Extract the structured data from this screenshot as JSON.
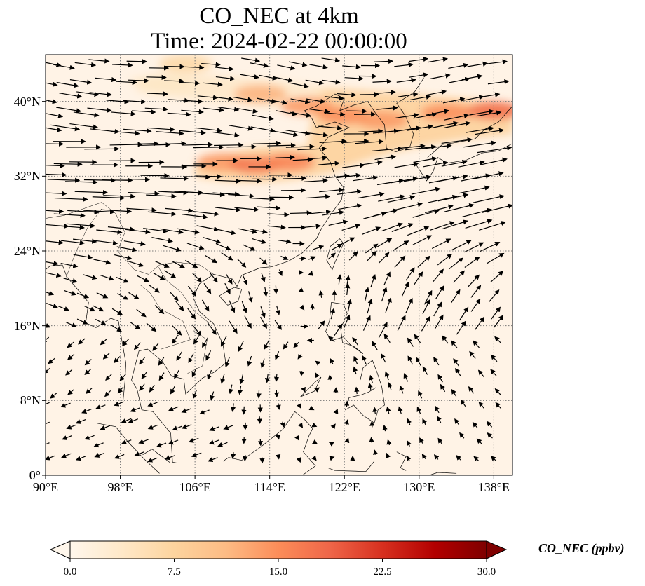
{
  "title": "CO_NEC at 4km",
  "subtitle": "Time: 2024-02-22 00:00:00",
  "map": {
    "projection": "PlateCarree",
    "extent": {
      "lon_min": 90,
      "lon_max": 140,
      "lat_min": 0,
      "lat_max": 45
    },
    "gridlines": true,
    "lat_ticks": [
      {
        "value": 40,
        "label": "40°N"
      },
      {
        "value": 32,
        "label": "32°N"
      },
      {
        "value": 24,
        "label": "24°N"
      },
      {
        "value": 16,
        "label": "16°N"
      },
      {
        "value": 8,
        "label": "8°N"
      },
      {
        "value": 0,
        "label": "0°"
      }
    ],
    "lon_ticks": [
      {
        "value": 90,
        "label": "90°E"
      },
      {
        "value": 98,
        "label": "98°E"
      },
      {
        "value": 106,
        "label": "106°E"
      },
      {
        "value": 114,
        "label": "114°E"
      },
      {
        "value": 122,
        "label": "122°E"
      },
      {
        "value": 130,
        "label": "130°E"
      },
      {
        "value": 138,
        "label": "138°E"
      }
    ],
    "background_color": "#fff3e6",
    "wind_vectors": "black arrows, strong westerlies north of ~18°N, anticyclonic turning over the South China Sea"
  },
  "colorbar": {
    "label": "CO_NEC (ppbv)",
    "colormap": "OrRd",
    "min": 0.0,
    "max": 30.0,
    "extend": "both",
    "tick_labels": [
      "0.0",
      "7.5",
      "15.0",
      "22.5",
      "30.0"
    ],
    "colors": [
      "#fff7ec",
      "#fee8c8",
      "#fdd49e",
      "#fdbb84",
      "#fc8d59",
      "#ef6548",
      "#d7301f",
      "#b30000",
      "#7f0000"
    ]
  },
  "plumes": [
    {
      "lon": 109,
      "lat": 33.5,
      "value": 14
    },
    {
      "lon": 112.5,
      "lat": 33.2,
      "value": 17
    },
    {
      "lon": 116,
      "lat": 33.5,
      "value": 16
    },
    {
      "lon": 113,
      "lat": 40.8,
      "value": 12
    },
    {
      "lon": 118,
      "lat": 39.5,
      "value": 14
    },
    {
      "lon": 122,
      "lat": 38.5,
      "value": 15
    },
    {
      "lon": 126,
      "lat": 38.0,
      "value": 14
    },
    {
      "lon": 133,
      "lat": 38.8,
      "value": 15
    },
    {
      "lon": 138,
      "lat": 39.0,
      "value": 18
    },
    {
      "lon": 105,
      "lat": 44.0,
      "value": 7
    },
    {
      "lon": 103,
      "lat": 42.0,
      "value": 4
    }
  ]
}
